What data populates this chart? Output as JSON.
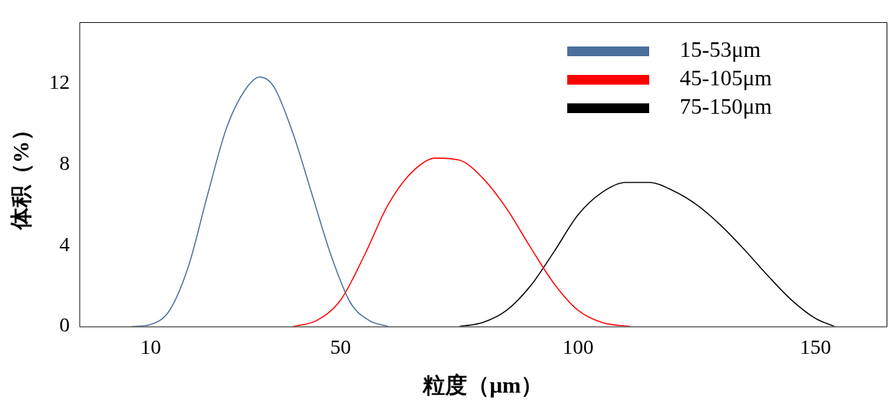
{
  "chart_data": {
    "type": "line",
    "xlabel": "粒度（μm）",
    "ylabel": "体积（%）",
    "xlim": [
      -5,
      165
    ],
    "xticks": [
      10,
      50,
      100,
      150
    ],
    "ylim": [
      0,
      15
    ],
    "yticks": [
      0,
      4,
      8,
      12
    ],
    "grid": false,
    "legend": "top right",
    "marker": "none",
    "line_style": "solid",
    "series": [
      {
        "name": "15-53μm",
        "color": "#4a6f9c",
        "x": [
          6,
          10,
          14,
          18,
          22,
          26,
          30,
          33,
          36,
          40,
          44,
          48,
          52,
          56,
          60
        ],
        "values": [
          0,
          0.1,
          0.8,
          3,
          6.5,
          9.8,
          11.7,
          12.3,
          11.8,
          9.5,
          6.5,
          3.5,
          1.2,
          0.3,
          0
        ]
      },
      {
        "name": "45-105μm",
        "color": "#ff0000",
        "x": [
          40,
          45,
          50,
          55,
          60,
          65,
          70,
          75,
          80,
          85,
          90,
          95,
          100,
          105,
          111
        ],
        "values": [
          0,
          0.3,
          1.3,
          3.5,
          6,
          7.6,
          8.3,
          8.2,
          7.3,
          5.8,
          3.9,
          2.1,
          0.8,
          0.2,
          0
        ]
      },
      {
        "name": "75-150μm",
        "color": "#000000",
        "x": [
          75,
          80,
          85,
          90,
          95,
          100,
          105,
          110,
          115,
          120,
          125,
          130,
          135,
          140,
          145,
          150,
          154
        ],
        "values": [
          0,
          0.2,
          0.8,
          2,
          3.7,
          5.5,
          6.6,
          7.1,
          7.1,
          6.7,
          6,
          5,
          3.8,
          2.5,
          1.3,
          0.4,
          0
        ]
      }
    ]
  }
}
